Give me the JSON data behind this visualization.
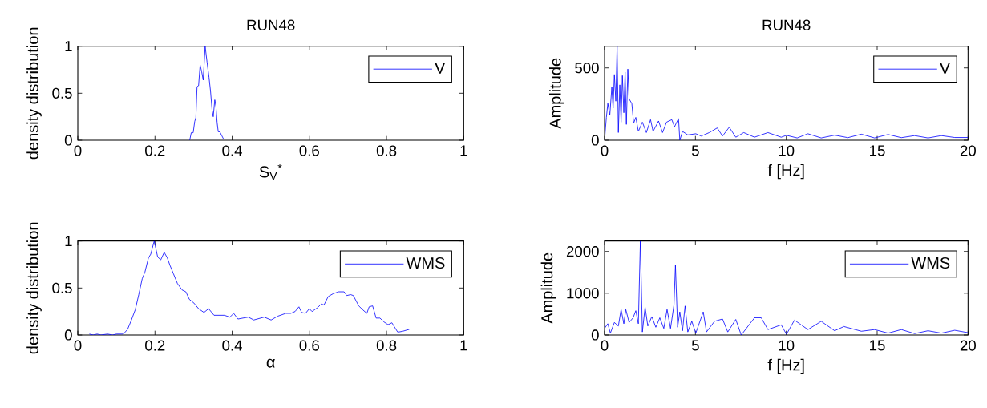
{
  "chart_data": [
    {
      "type": "line",
      "title": "RUN48",
      "xlabel": "S$_{V}$$^{*}$",
      "ylabel": "density distribution",
      "xlim": [
        0,
        1
      ],
      "ylim": [
        0,
        1
      ],
      "xticks": [
        0,
        0.2,
        0.4,
        0.6,
        0.8,
        1
      ],
      "yticks": [
        0,
        0.5,
        1
      ],
      "legend": "top right",
      "grid": false,
      "series": [
        {
          "name": "V",
          "color": "#0000ff",
          "x": [
            0.29,
            0.294,
            0.299,
            0.303,
            0.306,
            0.309,
            0.313,
            0.317,
            0.321,
            0.325,
            0.33,
            0.335,
            0.34,
            0.344,
            0.348,
            0.351,
            0.355,
            0.358,
            0.361,
            0.364,
            0.368,
            0.373,
            0.378
          ],
          "values": [
            0,
            0.08,
            0.08,
            0.2,
            0.24,
            0.57,
            0.58,
            0.8,
            0.73,
            0.64,
            1.0,
            0.83,
            0.67,
            0.52,
            0.32,
            0.25,
            0.43,
            0.36,
            0.19,
            0.09,
            0.09,
            0.05,
            0.01
          ]
        }
      ]
    },
    {
      "type": "line",
      "title": "RUN48",
      "xlabel": "f [Hz]",
      "ylabel": "Amplitude",
      "xlim": [
        0,
        20
      ],
      "ylim": [
        0,
        650
      ],
      "xticks": [
        0,
        5,
        10,
        15,
        20
      ],
      "yticks": [
        0,
        500
      ],
      "legend": "top right",
      "grid": false,
      "series": [
        {
          "name": "V",
          "color": "#0000ff",
          "x": [
            0,
            0.1,
            0.18,
            0.29,
            0.4,
            0.47,
            0.54,
            0.62,
            0.69,
            0.76,
            0.84,
            0.91,
            0.98,
            1.06,
            1.13,
            1.2,
            1.28,
            1.35,
            1.5,
            1.6,
            1.72,
            1.86,
            2.08,
            2.3,
            2.53,
            2.67,
            2.97,
            3.19,
            3.41,
            3.7,
            3.85,
            4.07,
            4.14,
            4.29,
            4.58,
            5.02,
            5.32,
            5.76,
            6.2,
            6.49,
            6.86,
            7.22,
            7.66,
            8.25,
            8.99,
            9.72,
            10.01,
            10.6,
            11.19,
            11.92,
            12.66,
            13.39,
            14.13,
            14.86,
            15.6,
            16.33,
            17.06,
            17.8,
            18.53,
            19.27,
            20
          ],
          "values": [
            0,
            158,
            254,
            174,
            367,
            222,
            455,
            270,
            650,
            53,
            383,
            125,
            447,
            190,
            471,
            109,
            492,
            286,
            254,
            117,
            158,
            61,
            125,
            53,
            142,
            61,
            133,
            53,
            125,
            142,
            93,
            150,
            0,
            61,
            37,
            45,
            29,
            53,
            85,
            29,
            90,
            21,
            53,
            21,
            53,
            21,
            34,
            16,
            45,
            16,
            35,
            18,
            42,
            16,
            40,
            18,
            32,
            16,
            32,
            19,
            19
          ]
        }
      ]
    },
    {
      "type": "line",
      "xlabel": "α",
      "ylabel": "density distribution",
      "xlim": [
        0,
        1
      ],
      "ylim": [
        0,
        1
      ],
      "xticks": [
        0,
        0.2,
        0.4,
        0.6,
        0.8,
        1
      ],
      "yticks": [
        0,
        0.5,
        1
      ],
      "legend": "top right",
      "grid": false,
      "series": [
        {
          "name": "WMS",
          "color": "#0000ff",
          "x": [
            0.03,
            0.04,
            0.05,
            0.06,
            0.077,
            0.09,
            0.1,
            0.118,
            0.129,
            0.139,
            0.149,
            0.158,
            0.167,
            0.174,
            0.183,
            0.189,
            0.198,
            0.207,
            0.215,
            0.224,
            0.232,
            0.239,
            0.248,
            0.258,
            0.27,
            0.28,
            0.289,
            0.301,
            0.313,
            0.327,
            0.339,
            0.353,
            0.38,
            0.394,
            0.404,
            0.415,
            0.428,
            0.442,
            0.456,
            0.483,
            0.501,
            0.518,
            0.539,
            0.552,
            0.563,
            0.573,
            0.58,
            0.59,
            0.6,
            0.607,
            0.621,
            0.631,
            0.638,
            0.649,
            0.662,
            0.676,
            0.69,
            0.697,
            0.707,
            0.714,
            0.728,
            0.738,
            0.749,
            0.755,
            0.764,
            0.773,
            0.783,
            0.793,
            0.804,
            0.814,
            0.829,
            0.842,
            0.859
          ],
          "values": [
            0.01,
            0,
            0.01,
            0,
            0.01,
            0,
            0.01,
            0.01,
            0.06,
            0.16,
            0.27,
            0.43,
            0.6,
            0.67,
            0.82,
            0.86,
            1.0,
            0.83,
            0.8,
            0.88,
            0.82,
            0.74,
            0.65,
            0.55,
            0.48,
            0.46,
            0.38,
            0.34,
            0.28,
            0.24,
            0.28,
            0.21,
            0.21,
            0.19,
            0.23,
            0.17,
            0.18,
            0.19,
            0.16,
            0.19,
            0.16,
            0.2,
            0.23,
            0.23,
            0.25,
            0.3,
            0.24,
            0.23,
            0.28,
            0.25,
            0.29,
            0.33,
            0.32,
            0.41,
            0.44,
            0.46,
            0.46,
            0.42,
            0.43,
            0.42,
            0.31,
            0.27,
            0.23,
            0.3,
            0.31,
            0.18,
            0.18,
            0.14,
            0.11,
            0.13,
            0.03,
            0.04,
            0.06
          ]
        }
      ]
    },
    {
      "type": "line",
      "xlabel": "f [Hz]",
      "ylabel": "Amplitude",
      "xlim": [
        0,
        20
      ],
      "ylim": [
        0,
        2250
      ],
      "xticks": [
        0,
        5,
        10,
        15,
        20
      ],
      "yticks": [
        0,
        1000,
        2000
      ],
      "legend": "top right",
      "grid": false,
      "series": [
        {
          "name": "WMS",
          "color": "#0000ff",
          "x": [
            0,
            0.18,
            0.32,
            0.54,
            0.76,
            0.91,
            1.06,
            1.17,
            1.35,
            1.57,
            1.72,
            1.86,
            1.97,
            2.08,
            2.23,
            2.38,
            2.6,
            2.82,
            3.04,
            3.26,
            3.44,
            3.63,
            3.82,
            3.9,
            4.02,
            4.14,
            4.29,
            4.43,
            4.58,
            4.8,
            5.02,
            5.43,
            5.61,
            6.05,
            6.49,
            6.78,
            7.22,
            7.52,
            8.25,
            8.62,
            8.99,
            9.72,
            10.01,
            10.45,
            11.19,
            11.92,
            12.66,
            13.17,
            14.13,
            14.86,
            15.6,
            16.33,
            17.06,
            17.8,
            18.53,
            19.27,
            20
          ],
          "values": [
            158,
            271,
            45,
            300,
            215,
            610,
            271,
            610,
            300,
            412,
            582,
            271,
            2250,
            73,
            667,
            215,
            441,
            186,
            412,
            158,
            610,
            158,
            723,
            1672,
            186,
            554,
            102,
            695,
            73,
            328,
            45,
            554,
            73,
            328,
            384,
            73,
            373,
            0,
            412,
            412,
            130,
            243,
            17,
            356,
            130,
            328,
            102,
            203,
            90,
            130,
            45,
            130,
            34,
            102,
            45,
            113,
            56
          ]
        }
      ]
    }
  ]
}
